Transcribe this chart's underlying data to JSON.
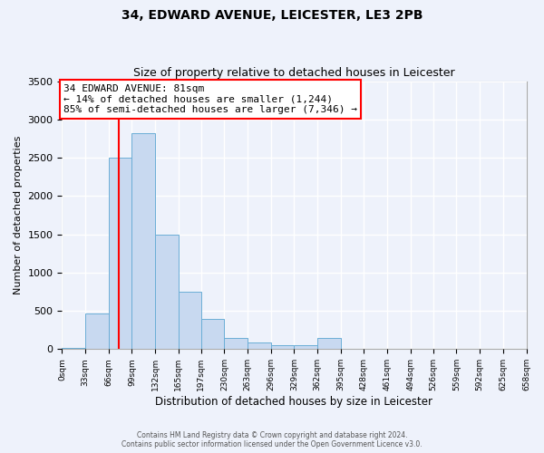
{
  "title": "34, EDWARD AVENUE, LEICESTER, LE3 2PB",
  "subtitle": "Size of property relative to detached houses in Leicester",
  "xlabel": "Distribution of detached houses by size in Leicester",
  "ylabel": "Number of detached properties",
  "bar_color": "#c8d9f0",
  "bar_edge_color": "#6baed6",
  "background_color": "#eef2fb",
  "grid_color": "#ffffff",
  "bin_edges": [
    0,
    33,
    66,
    99,
    132,
    165,
    197,
    230,
    263,
    296,
    329,
    362,
    395,
    428,
    461,
    494,
    526,
    559,
    592,
    625,
    658
  ],
  "counts": [
    15,
    470,
    2500,
    2820,
    1500,
    750,
    400,
    150,
    90,
    55,
    55,
    150,
    0,
    0,
    0,
    0,
    0,
    0,
    0,
    0
  ],
  "tick_labels": [
    "0sqm",
    "33sqm",
    "66sqm",
    "99sqm",
    "132sqm",
    "165sqm",
    "197sqm",
    "230sqm",
    "263sqm",
    "296sqm",
    "329sqm",
    "362sqm",
    "395sqm",
    "428sqm",
    "461sqm",
    "494sqm",
    "526sqm",
    "559sqm",
    "592sqm",
    "625sqm",
    "658sqm"
  ],
  "vline_x": 81,
  "vline_color": "red",
  "annotation_title": "34 EDWARD AVENUE: 81sqm",
  "annotation_line1": "← 14% of detached houses are smaller (1,244)",
  "annotation_line2": "85% of semi-detached houses are larger (7,346) →",
  "annotation_box_color": "white",
  "annotation_box_edge": "red",
  "ylim": [
    0,
    3500
  ],
  "footer1": "Contains HM Land Registry data © Crown copyright and database right 2024.",
  "footer2": "Contains public sector information licensed under the Open Government Licence v3.0."
}
